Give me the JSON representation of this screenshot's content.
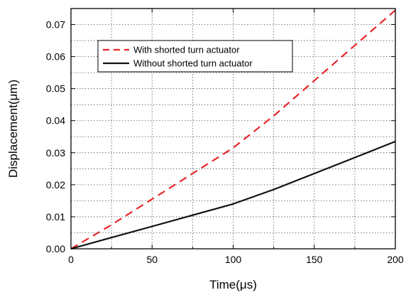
{
  "chart_data": {
    "type": "line",
    "title": "",
    "xlabel": "Time(μs)",
    "ylabel": "Displacement(μm)",
    "xlim": [
      0,
      200
    ],
    "ylim": [
      0,
      0.075
    ],
    "xticks": [
      0,
      50,
      100,
      150,
      200
    ],
    "xtick_labels": [
      "0",
      "50",
      "100",
      "150",
      "200"
    ],
    "yticks": [
      0,
      0.01,
      0.02,
      0.03,
      0.04,
      0.05,
      0.06,
      0.07
    ],
    "ytick_labels": [
      "0.00",
      "0.01",
      "0.02",
      "0.03",
      "0.04",
      "0.05",
      "0.06",
      "0.07"
    ],
    "grid": true,
    "legend_position": "upper-left-center",
    "series": [
      {
        "name": "With shorted turn actuator",
        "color": "#e8262a",
        "style": "dashed",
        "x": [
          0,
          25,
          50,
          75,
          100,
          125,
          150,
          175,
          200
        ],
        "y": [
          0,
          0.0075,
          0.0155,
          0.0235,
          0.0315,
          0.0415,
          0.0525,
          0.0635,
          0.0745
        ]
      },
      {
        "name": "Without shorted turn actuator",
        "color": "#111111",
        "style": "solid",
        "x": [
          0,
          25,
          50,
          75,
          100,
          125,
          150,
          175,
          200
        ],
        "y": [
          0,
          0.0035,
          0.007,
          0.0105,
          0.014,
          0.0185,
          0.0235,
          0.0285,
          0.0335
        ]
      }
    ]
  }
}
